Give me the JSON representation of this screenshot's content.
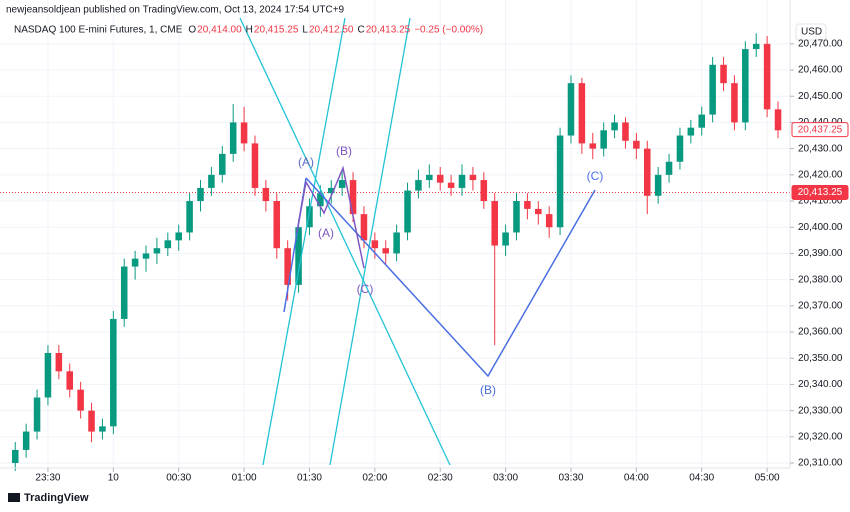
{
  "header": {
    "publisher": "newjeansoldjean published on TradingView.com, Oct 13, 2024 17:54 UTC+9",
    "symbol": "NASDAQ 100 E-mini Futures, 1, CME",
    "ohlc": [
      {
        "label": "O",
        "value": "20,414.00"
      },
      {
        "label": "H",
        "value": "20,415.25"
      },
      {
        "label": "L",
        "value": "20,412.50"
      },
      {
        "label": "C",
        "value": "20,413.25"
      }
    ],
    "change": "−0.25 (−0.00%)"
  },
  "footer": "TradingView",
  "chart_data": {
    "type": "candlestick",
    "currency": "USD",
    "up_color": "#089981",
    "down_color": "#f23645",
    "x": [
      15,
      20,
      25,
      30,
      35,
      40,
      45,
      50,
      55,
      60,
      65,
      70,
      75,
      80,
      85,
      90,
      95,
      100,
      105,
      110,
      115,
      120,
      125,
      130,
      135,
      140,
      145,
      150,
      155,
      160,
      165,
      170,
      175,
      180,
      185,
      190,
      195,
      200,
      205,
      210,
      215,
      220,
      225,
      230,
      235,
      240,
      245,
      250,
      255,
      260,
      265,
      270,
      275,
      280,
      285,
      290,
      295,
      300,
      305,
      310,
      315,
      320,
      325,
      330,
      335,
      340,
      345,
      350,
      355,
      360,
      365
    ],
    "open": [
      20310,
      20315,
      20322,
      20335,
      20352,
      20345,
      20338,
      20330,
      20322,
      20324,
      20365,
      20385,
      20388,
      20390,
      20392,
      20395,
      20398,
      20410,
      20415,
      20420,
      20428,
      20440,
      20432,
      20415,
      20410,
      20392,
      20378,
      20400,
      20408,
      20413,
      20415,
      20418,
      20405,
      20395,
      20392,
      20390,
      20398,
      20414,
      20418,
      20420,
      20417,
      20415,
      20420,
      20418,
      20410,
      20393,
      20398,
      20410,
      20407,
      20405,
      20400,
      20435,
      20455,
      20432,
      20430,
      20437,
      20440,
      20433,
      20430,
      20412,
      20420,
      20425,
      20435,
      20438,
      20443,
      20462,
      20455,
      20440,
      20468,
      20470,
      20445
    ],
    "high": [
      20318,
      20325,
      20338,
      20355,
      20355,
      20348,
      20341,
      20333,
      20327,
      20368,
      20388,
      20391,
      20393,
      20396,
      20398,
      20401,
      20413,
      20418,
      20423,
      20431,
      20447,
      20446,
      20435,
      20418,
      20413,
      20395,
      20403,
      20411,
      20416,
      20418,
      20422,
      20421,
      20408,
      20398,
      20395,
      20401,
      20417,
      20422,
      20424,
      20423,
      20420,
      20424,
      20423,
      20421,
      20413,
      20401,
      20413,
      20413,
      20410,
      20408,
      20438,
      20458,
      20457,
      20436,
      20440,
      20443,
      20442,
      20436,
      20433,
      20423,
      20428,
      20438,
      20441,
      20446,
      20465,
      20465,
      20458,
      20471,
      20474,
      20473,
      20448
    ],
    "low": [
      20307,
      20312,
      20319,
      20332,
      20342,
      20335,
      20327,
      20318,
      20319,
      20321,
      20362,
      20380,
      20383,
      20386,
      20389,
      20391,
      20395,
      20406,
      20412,
      20417,
      20425,
      20429,
      20412,
      20406,
      20388,
      20372,
      20375,
      20397,
      20404,
      20409,
      20412,
      20402,
      20392,
      20388,
      20386,
      20387,
      20395,
      20411,
      20415,
      20414,
      20412,
      20412,
      20414,
      20407,
      20355,
      20389,
      20395,
      20403,
      20401,
      20396,
      20397,
      20432,
      20428,
      20426,
      20427,
      20434,
      20430,
      20426,
      20405,
      20409,
      20417,
      20422,
      20432,
      20435,
      20440,
      20452,
      20437,
      20437,
      20465,
      20442,
      20434
    ],
    "close": [
      20315,
      20322,
      20335,
      20352,
      20345,
      20338,
      20330,
      20322,
      20324,
      20365,
      20385,
      20388,
      20390,
      20392,
      20395,
      20398,
      20410,
      20415,
      20420,
      20428,
      20440,
      20432,
      20415,
      20410,
      20392,
      20378,
      20400,
      20408,
      20413,
      20415,
      20418,
      20405,
      20395,
      20392,
      20390,
      20398,
      20414,
      20418,
      20420,
      20417,
      20415,
      20420,
      20418,
      20410,
      20393,
      20398,
      20410,
      20407,
      20405,
      20400,
      20435,
      20455,
      20432,
      20430,
      20437,
      20440,
      20433,
      20430,
      20412,
      20420,
      20425,
      20435,
      20438,
      20443,
      20462,
      20455,
      20440,
      20468,
      20470,
      20445,
      20437
    ],
    "xlim": [
      8,
      370.5
    ],
    "xticks": [
      {
        "value": 30,
        "label": "23:30"
      },
      {
        "value": 60,
        "label": "10"
      },
      {
        "value": 90,
        "label": "00:30"
      },
      {
        "value": 120,
        "label": "01:00"
      },
      {
        "value": 150,
        "label": "01:30"
      },
      {
        "value": 180,
        "label": "02:00"
      },
      {
        "value": 210,
        "label": "02:30"
      },
      {
        "value": 240,
        "label": "03:00"
      },
      {
        "value": 270,
        "label": "03:30"
      },
      {
        "value": 300,
        "label": "04:00"
      },
      {
        "value": 330,
        "label": "04:30"
      },
      {
        "value": 360,
        "label": "05:00"
      }
    ],
    "ylim": [
      20308.1,
      20479.1
    ],
    "yticks": [
      {
        "value": 20310,
        "label": "20,310.00"
      },
      {
        "value": 20320,
        "label": "20,320.00"
      },
      {
        "value": 20330,
        "label": "20,330.00"
      },
      {
        "value": 20340,
        "label": "20,340.00"
      },
      {
        "value": 20350,
        "label": "20,350.00"
      },
      {
        "value": 20360,
        "label": "20,360.00"
      },
      {
        "value": 20370,
        "label": "20,370.00"
      },
      {
        "value": 20380,
        "label": "20,380.00"
      },
      {
        "value": 20390,
        "label": "20,390.00"
      },
      {
        "value": 20400,
        "label": "20,400.00"
      },
      {
        "value": 20410,
        "label": "20,410.00"
      },
      {
        "value": 20420,
        "label": "20,420.00"
      },
      {
        "value": 20430,
        "label": "20,430.00"
      },
      {
        "value": 20440,
        "label": "20,440.00"
      },
      {
        "value": 20450,
        "label": "20,450.00"
      },
      {
        "value": 20460,
        "label": "20,460.00"
      },
      {
        "value": 20470,
        "label": "20,470.00"
      }
    ],
    "grid": true,
    "last_price": {
      "value": 20437.25,
      "label": "20,437.25"
    },
    "price_line": {
      "value": 20413.25,
      "label": "20,413.25"
    },
    "wave_labels": [
      "(A)",
      "(B)",
      "(A)",
      "(C)",
      "(B)",
      "(C)"
    ]
  }
}
